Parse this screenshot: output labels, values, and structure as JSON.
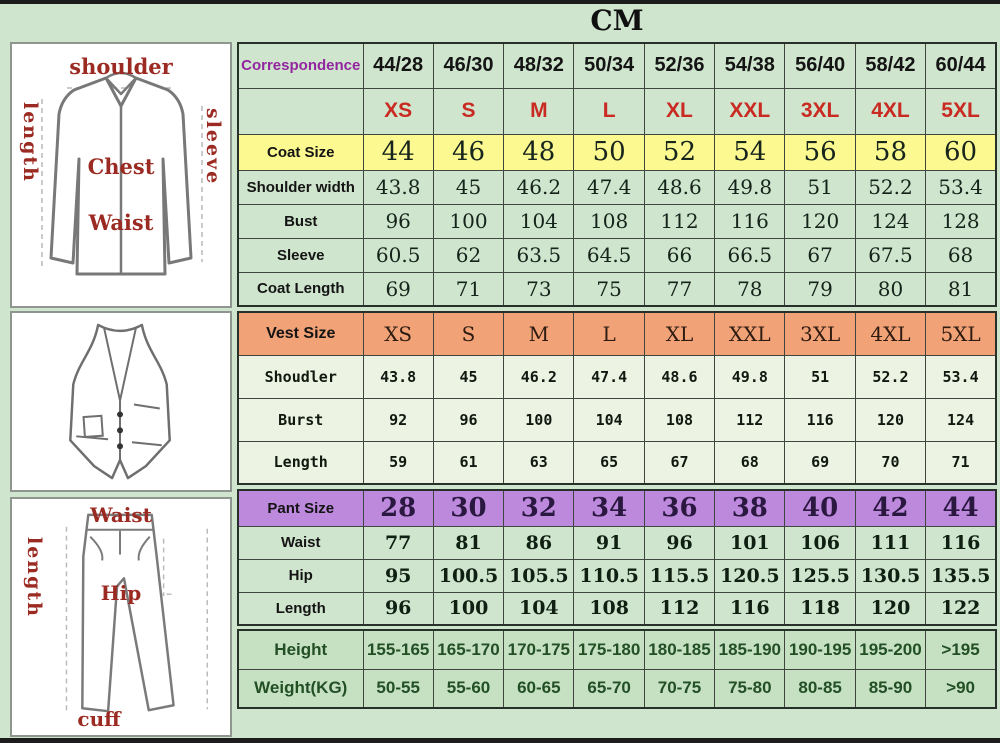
{
  "title": "CM",
  "colors": {
    "page_bg": "#cfe5cd",
    "coat_size_row_bg": "#fbf98f",
    "vest_size_row_bg": "#f1a276",
    "pant_size_row_bg": "#bd89dd",
    "body_rows_bg": "#c5e1c2",
    "size_letters_text": "#c92a21",
    "correspondence_text": "#9326a0",
    "diagram_label_text": "#9b2b22",
    "body_rows_text": "#234f25"
  },
  "diagrams": {
    "jacket_labels": {
      "top": "shoulder",
      "left": "length",
      "right": "sleeve",
      "center": "Chest",
      "lower": "Waist"
    },
    "pants_labels": {
      "top": "Waist",
      "left": "length",
      "center": "Hip",
      "bottom": "cuff"
    }
  },
  "chart_data": {
    "type": "table",
    "title": "CM",
    "columns": [
      "Correspondence",
      "44/28",
      "46/30",
      "48/32",
      "50/34",
      "52/36",
      "54/38",
      "56/40",
      "58/42",
      "60/44"
    ],
    "rows": [
      {
        "section": "coat",
        "type": "correspondence",
        "label": "Correspondence",
        "values": [
          "44/28",
          "46/30",
          "48/32",
          "50/34",
          "52/36",
          "54/38",
          "56/40",
          "58/42",
          "60/44"
        ]
      },
      {
        "section": "coat",
        "type": "letters",
        "label": "",
        "values": [
          "XS",
          "S",
          "M",
          "L",
          "XL",
          "XXL",
          "3XL",
          "4XL",
          "5XL"
        ]
      },
      {
        "section": "coat",
        "type": "coat-size",
        "label": "Coat Size",
        "values": [
          "44",
          "46",
          "48",
          "50",
          "52",
          "54",
          "56",
          "58",
          "60"
        ]
      },
      {
        "section": "coat",
        "type": "coat-row",
        "label": "Shoulder width",
        "values": [
          "43.8",
          "45",
          "46.2",
          "47.4",
          "48.6",
          "49.8",
          "51",
          "52.2",
          "53.4"
        ]
      },
      {
        "section": "coat",
        "type": "coat-row",
        "label": "Bust",
        "values": [
          "96",
          "100",
          "104",
          "108",
          "112",
          "116",
          "120",
          "124",
          "128"
        ]
      },
      {
        "section": "coat",
        "type": "coat-row",
        "label": "Sleeve",
        "values": [
          "60.5",
          "62",
          "63.5",
          "64.5",
          "66",
          "66.5",
          "67",
          "67.5",
          "68"
        ]
      },
      {
        "section": "coat",
        "type": "coat-row",
        "label": "Coat Length",
        "values": [
          "69",
          "71",
          "73",
          "75",
          "77",
          "78",
          "79",
          "80",
          "81"
        ]
      },
      {
        "section": "vest",
        "type": "vest-size",
        "label": "Vest Size",
        "values": [
          "XS",
          "S",
          "M",
          "L",
          "XL",
          "XXL",
          "3XL",
          "4XL",
          "5XL"
        ]
      },
      {
        "section": "vest",
        "type": "vest-row",
        "label": "Shoudler",
        "values": [
          "43.8",
          "45",
          "46.2",
          "47.4",
          "48.6",
          "49.8",
          "51",
          "52.2",
          "53.4"
        ]
      },
      {
        "section": "vest",
        "type": "vest-row",
        "label": "Burst",
        "values": [
          "92",
          "96",
          "100",
          "104",
          "108",
          "112",
          "116",
          "120",
          "124"
        ]
      },
      {
        "section": "vest",
        "type": "vest-row",
        "label": "Length",
        "values": [
          "59",
          "61",
          "63",
          "65",
          "67",
          "68",
          "69",
          "70",
          "71"
        ]
      },
      {
        "section": "pant",
        "type": "pant-size",
        "label": "Pant Size",
        "values": [
          "28",
          "30",
          "32",
          "34",
          "36",
          "38",
          "40",
          "42",
          "44"
        ]
      },
      {
        "section": "pant",
        "type": "pant-row",
        "label": "Waist",
        "values": [
          "77",
          "81",
          "86",
          "91",
          "96",
          "101",
          "106",
          "111",
          "116"
        ]
      },
      {
        "section": "pant",
        "type": "pant-row",
        "label": "Hip",
        "values": [
          "95",
          "100.5",
          "105.5",
          "110.5",
          "115.5",
          "120.5",
          "125.5",
          "130.5",
          "135.5"
        ]
      },
      {
        "section": "pant",
        "type": "pant-row",
        "label": "Length",
        "values": [
          "96",
          "100",
          "104",
          "108",
          "112",
          "116",
          "118",
          "120",
          "122"
        ]
      },
      {
        "section": "body",
        "type": "body-row",
        "label": "Height",
        "values": [
          "155-165",
          "165-170",
          "170-175",
          "175-180",
          "180-185",
          "185-190",
          "190-195",
          "195-200",
          ">195"
        ]
      },
      {
        "section": "body",
        "type": "body-row",
        "label": "Weight(KG)",
        "values": [
          "50-55",
          "55-60",
          "60-65",
          "65-70",
          "70-75",
          "75-80",
          "80-85",
          "85-90",
          ">90"
        ]
      }
    ]
  }
}
